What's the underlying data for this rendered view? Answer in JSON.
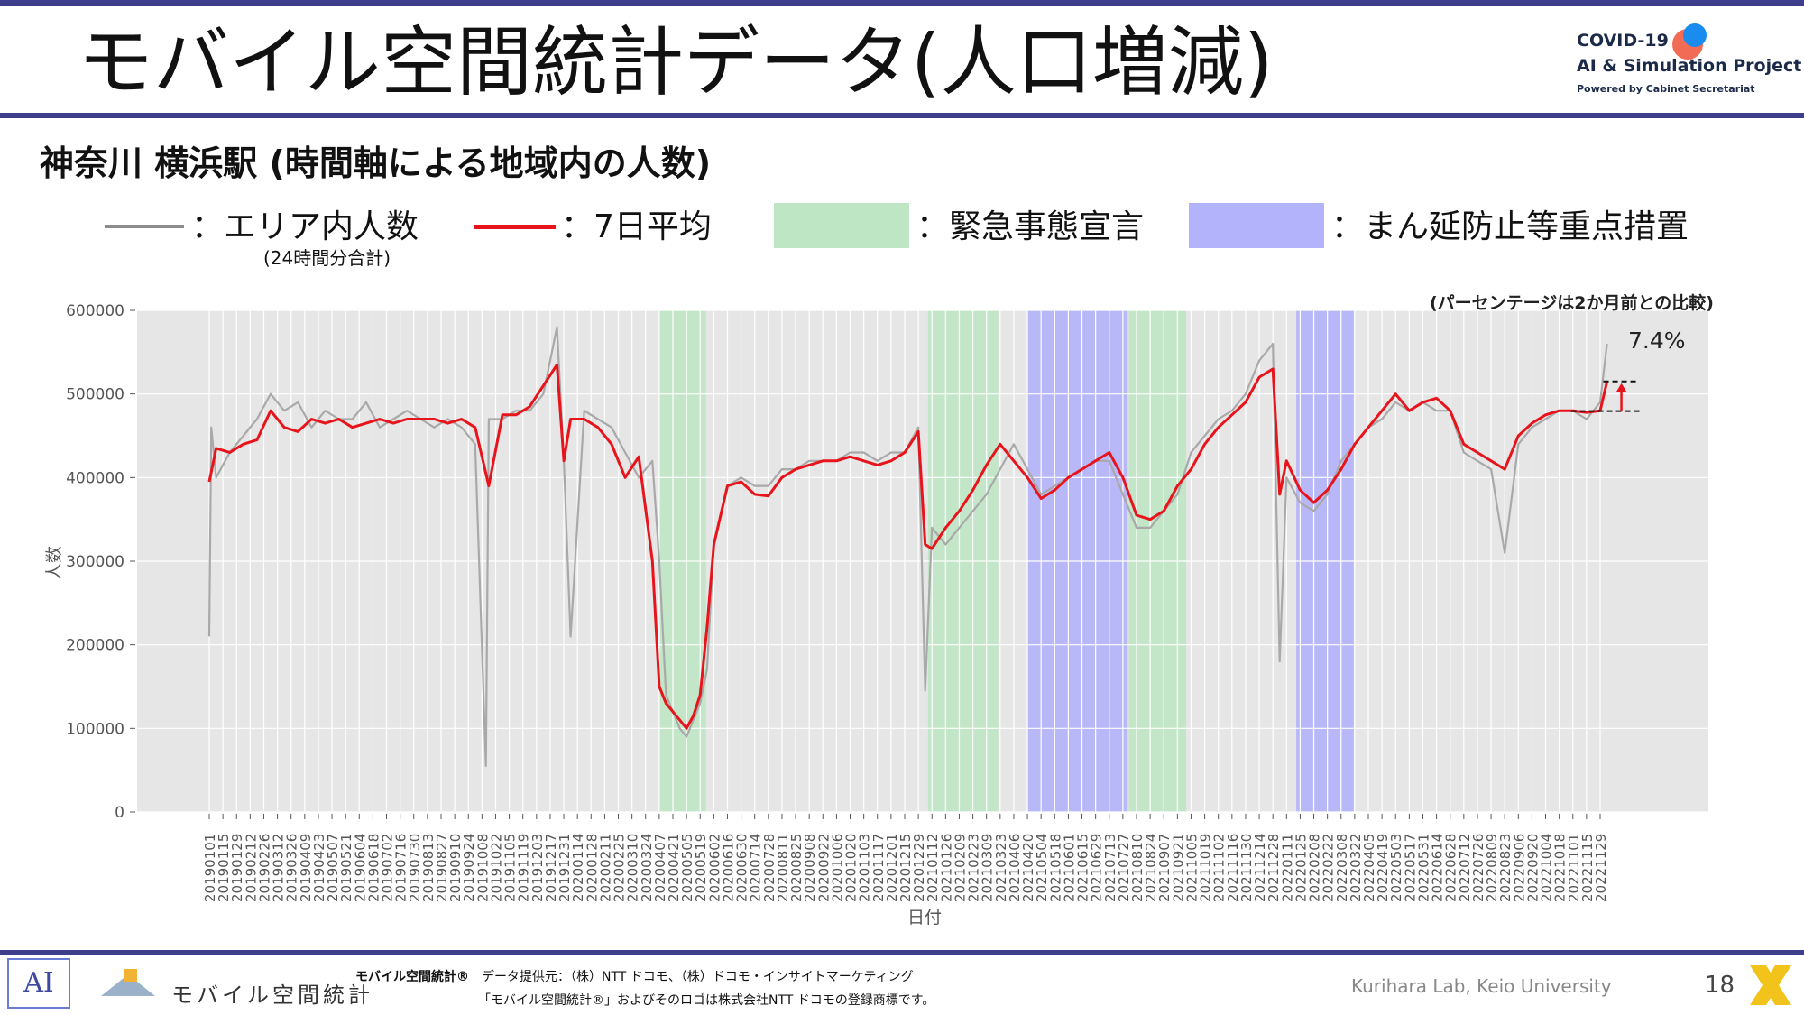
{
  "header": {
    "title": "モバイル空間統計データ(人口増減)",
    "logo": {
      "line1": "COVID-19",
      "line2": "AI & Simulation Project",
      "line3": "Powered by Cabinet Secretariat"
    }
  },
  "subtitle": "神奈川 横浜駅 (時間軸による地域内の人数)",
  "legend": {
    "area": {
      "label": "：エリア内人数",
      "sub": "(24時間分合計)",
      "color": "#8c8c8c"
    },
    "avg": {
      "label": "：7日平均",
      "color": "#e8141c"
    },
    "emergency": {
      "label": "：緊急事態宣言",
      "color": "#bfe6c4"
    },
    "manbou": {
      "label": "：まん延防止等重点措置",
      "color": "#b3b3fb"
    }
  },
  "chart_data": {
    "type": "line",
    "note": "(パーセンテージは2か月前との比較)",
    "change_label": "7.4%",
    "xlabel": "日付",
    "ylabel": "人数",
    "ylim": [
      0,
      600000
    ],
    "yticks": [
      "0",
      "100000",
      "200000",
      "300000",
      "400000",
      "500000",
      "600000"
    ],
    "x_tick_labels": [
      "20190101",
      "20190115",
      "20190129",
      "20190212",
      "20190226",
      "20190312",
      "20190326",
      "20190409",
      "20190423",
      "20190507",
      "20190521",
      "20190604",
      "20190618",
      "20190702",
      "20190716",
      "20190730",
      "20190813",
      "20190827",
      "20190910",
      "20190924",
      "20191008",
      "20191022",
      "20191105",
      "20191119",
      "20191203",
      "20191217",
      "20191231",
      "20200114",
      "20200128",
      "20200211",
      "20200225",
      "20200310",
      "20200324",
      "20200407",
      "20200421",
      "20200505",
      "20200519",
      "20200602",
      "20200616",
      "20200630",
      "20200714",
      "20200728",
      "20200811",
      "20200825",
      "20200908",
      "20200922",
      "20201006",
      "20201020",
      "20201103",
      "20201117",
      "20201201",
      "20201215",
      "20201229",
      "20210112",
      "20210126",
      "20210209",
      "20210223",
      "20210309",
      "20210323",
      "20210406",
      "20210420",
      "20210504",
      "20210518",
      "20210601",
      "20210615",
      "20210629",
      "20210713",
      "20210727",
      "20210810",
      "20210824",
      "20210907",
      "20210921",
      "20211005",
      "20211019",
      "20211102",
      "20211116",
      "20211130",
      "20211214",
      "20211228",
      "20220111",
      "20220125",
      "20220208",
      "20220222",
      "20220308",
      "20220322",
      "20220405",
      "20220419",
      "20220503",
      "20220517",
      "20220531",
      "20220614",
      "20220628",
      "20220712",
      "20220726",
      "20220809",
      "20220823",
      "20220906",
      "20220920",
      "20221004",
      "20221018",
      "20221101",
      "20221115",
      "20221129"
    ],
    "shaded_periods": [
      {
        "kind": "emergency",
        "start": "20200407",
        "end": "20200525"
      },
      {
        "kind": "emergency",
        "start": "20210108",
        "end": "20210321"
      },
      {
        "kind": "manbou",
        "start": "20210420",
        "end": "20210801"
      },
      {
        "kind": "emergency",
        "start": "20210802",
        "end": "20210930"
      },
      {
        "kind": "manbou",
        "start": "20220121",
        "end": "20220321"
      }
    ],
    "series": [
      {
        "name": "エリア内人数",
        "kind": "daily",
        "x": [
          "20190101",
          "20190103",
          "20190108",
          "20190122",
          "20190205",
          "20190219",
          "20190305",
          "20190319",
          "20190402",
          "20190416",
          "20190430",
          "20190514",
          "20190528",
          "20190611",
          "20190625",
          "20190709",
          "20190723",
          "20190806",
          "20190820",
          "20190903",
          "20190917",
          "20191001",
          "20191012",
          "20191015",
          "20191029",
          "20191112",
          "20191126",
          "20191210",
          "20191224",
          "20191231",
          "20200107",
          "20200121",
          "20200204",
          "20200218",
          "20200303",
          "20200317",
          "20200331",
          "20200407",
          "20200414",
          "20200421",
          "20200428",
          "20200505",
          "20200512",
          "20200519",
          "20200526",
          "20200602",
          "20200616",
          "20200630",
          "20200714",
          "20200728",
          "20200811",
          "20200825",
          "20200908",
          "20200922",
          "20201006",
          "20201020",
          "20201103",
          "20201117",
          "20201201",
          "20201215",
          "20201229",
          "20210105",
          "20210112",
          "20210126",
          "20210209",
          "20210223",
          "20210309",
          "20210323",
          "20210406",
          "20210420",
          "20210504",
          "20210518",
          "20210601",
          "20210615",
          "20210629",
          "20210713",
          "20210727",
          "20210810",
          "20210824",
          "20210907",
          "20210921",
          "20211005",
          "20211019",
          "20211102",
          "20211116",
          "20211130",
          "20211214",
          "20211228",
          "20220104",
          "20220111",
          "20220125",
          "20220208",
          "20220222",
          "20220308",
          "20220322",
          "20220405",
          "20220419",
          "20220503",
          "20220517",
          "20220531",
          "20220614",
          "20220628",
          "20220712",
          "20220726",
          "20220809",
          "20220823",
          "20220906",
          "20220920",
          "20221004",
          "20221018",
          "20221101",
          "20221115",
          "20221129",
          "20221206"
        ],
        "values": [
          210000,
          460000,
          400000,
          430000,
          450000,
          470000,
          500000,
          480000,
          490000,
          460000,
          480000,
          470000,
          470000,
          490000,
          460000,
          470000,
          480000,
          470000,
          460000,
          470000,
          460000,
          440000,
          55000,
          470000,
          470000,
          480000,
          480000,
          500000,
          580000,
          420000,
          210000,
          480000,
          470000,
          460000,
          430000,
          400000,
          420000,
          300000,
          140000,
          120000,
          100000,
          90000,
          110000,
          130000,
          170000,
          320000,
          390000,
          400000,
          390000,
          390000,
          410000,
          410000,
          420000,
          420000,
          420000,
          430000,
          430000,
          420000,
          430000,
          430000,
          460000,
          145000,
          340000,
          320000,
          340000,
          360000,
          380000,
          410000,
          440000,
          410000,
          380000,
          390000,
          400000,
          410000,
          420000,
          420000,
          380000,
          340000,
          340000,
          360000,
          380000,
          430000,
          450000,
          470000,
          480000,
          500000,
          540000,
          560000,
          180000,
          400000,
          370000,
          360000,
          380000,
          420000,
          440000,
          460000,
          470000,
          490000,
          480000,
          490000,
          480000,
          480000,
          430000,
          420000,
          410000,
          310000,
          440000,
          460000,
          470000,
          480000,
          480000,
          470000,
          490000,
          560000
        ]
      },
      {
        "name": "7日平均",
        "kind": "avg7",
        "x": [
          "20190101",
          "20190108",
          "20190122",
          "20190205",
          "20190219",
          "20190305",
          "20190319",
          "20190402",
          "20190416",
          "20190430",
          "20190514",
          "20190528",
          "20190611",
          "20190625",
          "20190709",
          "20190723",
          "20190806",
          "20190820",
          "20190903",
          "20190917",
          "20191001",
          "20191015",
          "20191029",
          "20191112",
          "20191126",
          "20191210",
          "20191224",
          "20191231",
          "20200107",
          "20200121",
          "20200204",
          "20200218",
          "20200303",
          "20200317",
          "20200331",
          "20200407",
          "20200414",
          "20200421",
          "20200428",
          "20200505",
          "20200512",
          "20200519",
          "20200526",
          "20200602",
          "20200616",
          "20200630",
          "20200714",
          "20200728",
          "20200811",
          "20200825",
          "20200908",
          "20200922",
          "20201006",
          "20201020",
          "20201103",
          "20201117",
          "20201201",
          "20201215",
          "20201229",
          "20210105",
          "20210112",
          "20210126",
          "20210209",
          "20210223",
          "20210309",
          "20210323",
          "20210406",
          "20210420",
          "20210504",
          "20210518",
          "20210601",
          "20210615",
          "20210629",
          "20210713",
          "20210727",
          "20210810",
          "20210824",
          "20210907",
          "20210921",
          "20211005",
          "20211019",
          "20211102",
          "20211116",
          "20211130",
          "20211214",
          "20211228",
          "20220104",
          "20220111",
          "20220125",
          "20220208",
          "20220222",
          "20220308",
          "20220322",
          "20220405",
          "20220419",
          "20220503",
          "20220517",
          "20220531",
          "20220614",
          "20220628",
          "20220712",
          "20220726",
          "20220809",
          "20220823",
          "20220906",
          "20220920",
          "20221004",
          "20221018",
          "20221101",
          "20221115",
          "20221129",
          "20221206"
        ],
        "values": [
          395000,
          435000,
          430000,
          440000,
          445000,
          480000,
          460000,
          455000,
          470000,
          465000,
          470000,
          460000,
          465000,
          470000,
          465000,
          470000,
          470000,
          470000,
          465000,
          470000,
          460000,
          390000,
          475000,
          475000,
          485000,
          510000,
          535000,
          420000,
          470000,
          470000,
          460000,
          440000,
          400000,
          425000,
          300000,
          150000,
          130000,
          120000,
          110000,
          100000,
          115000,
          140000,
          220000,
          320000,
          390000,
          395000,
          380000,
          378000,
          400000,
          410000,
          415000,
          420000,
          420000,
          425000,
          420000,
          415000,
          420000,
          430000,
          455000,
          320000,
          315000,
          340000,
          360000,
          385000,
          415000,
          440000,
          420000,
          400000,
          375000,
          385000,
          400000,
          410000,
          420000,
          430000,
          400000,
          355000,
          350000,
          360000,
          390000,
          410000,
          440000,
          460000,
          475000,
          490000,
          520000,
          530000,
          380000,
          420000,
          385000,
          370000,
          385000,
          410000,
          440000,
          460000,
          480000,
          500000,
          480000,
          490000,
          495000,
          480000,
          440000,
          430000,
          420000,
          410000,
          450000,
          465000,
          475000,
          480000,
          480000,
          478000,
          480000,
          515000
        ]
      }
    ]
  },
  "footer": {
    "brand_text": "モバイル空間統計",
    "trademark_title": "モバイル空間統計®",
    "provider": "データ提供元：（株）NTT ドコモ、（株）ドコモ・インサイトマーケティング",
    "trademark_note": "「モバイル空間統計®」およびそのロゴは株式会社NTT ドコモの登録商標です。",
    "credit": "Kurihara Lab, Keio University",
    "page_number": "18"
  }
}
